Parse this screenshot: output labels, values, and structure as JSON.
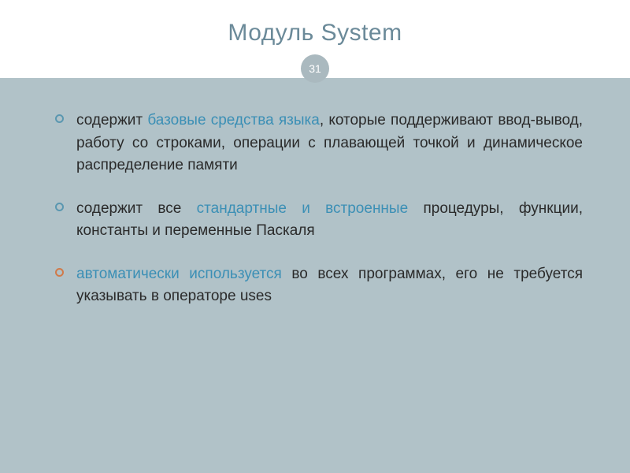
{
  "slide": {
    "title": "Модуль System",
    "page_number": "31",
    "title_color": "#6b8a99",
    "badge_bg": "#aab9bf",
    "badge_text": "#ffffff",
    "content_bg": "#b1c2c8",
    "body_color": "#2a2a2a",
    "highlight_color": "#3b8fb5",
    "title_fontsize": 30,
    "body_fontsize": 19,
    "bullets": [
      {
        "ring_color": "#5a97b0",
        "parts": [
          {
            "t": "содержит ",
            "hl": false
          },
          {
            "t": "базовые средства языка",
            "hl": true
          },
          {
            "t": ", которые поддерживают ввод-вывод, работу со строками, операции с плавающей точкой и динамическое распределение памяти",
            "hl": false
          }
        ]
      },
      {
        "ring_color": "#5a97b0",
        "parts": [
          {
            "t": "содержит все ",
            "hl": false
          },
          {
            "t": "стандартные и встроенные",
            "hl": true
          },
          {
            "t": " процедуры, функции, константы и переменные Паскаля",
            "hl": false
          }
        ]
      },
      {
        "ring_color": "#d07a4a",
        "parts": [
          {
            "t": "автоматически используется",
            "hl": true
          },
          {
            "t": " во всех программах, его не требуется указывать в операторе uses",
            "hl": false
          }
        ]
      }
    ]
  }
}
